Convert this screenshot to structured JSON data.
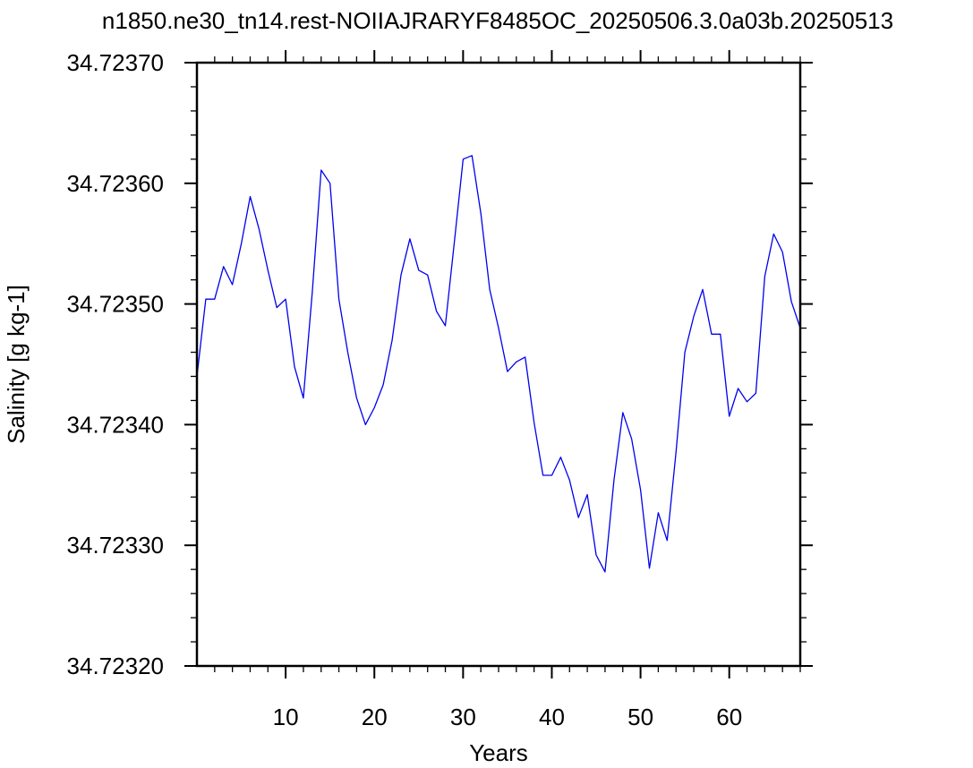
{
  "chart_data": {
    "type": "line",
    "title": "n1850.ne30_tn14.rest-NOIIAJRARYF8485OC_20250506.3.0a03b.20250513",
    "xlabel": "Years",
    "ylabel": "Salinity [g kg-1]",
    "xlim": [
      0,
      68
    ],
    "ylim": [
      34.7232,
      34.7237
    ],
    "x_ticks": [
      10,
      20,
      30,
      40,
      50,
      60
    ],
    "y_ticks": [
      34.7232,
      34.7233,
      34.7234,
      34.7235,
      34.7236,
      34.7237
    ],
    "y_tick_labels": [
      "34.72320",
      "34.72330",
      "34.72340",
      "34.72350",
      "34.72360",
      "34.72370"
    ],
    "grid": false,
    "line_color": "#0000ee",
    "series": [
      {
        "x": [
          0,
          1,
          2,
          3,
          4,
          5,
          6,
          7,
          8,
          9,
          10,
          11,
          12,
          13,
          14,
          15,
          16,
          17,
          18,
          19,
          20,
          21,
          22,
          23,
          24,
          25,
          26,
          27,
          28,
          29,
          30,
          31,
          32,
          33,
          34,
          35,
          36,
          37,
          38,
          39,
          40,
          41,
          42,
          43,
          44,
          45,
          46,
          47,
          48,
          49,
          50,
          51,
          52,
          53,
          54,
          55,
          56,
          57,
          58,
          59,
          60,
          61,
          62,
          63,
          64,
          65,
          66,
          67,
          68
        ],
        "values": [
          34.72344,
          34.723504,
          34.723504,
          34.723531,
          34.723516,
          34.72355,
          34.723589,
          34.723562,
          34.723528,
          34.723497,
          34.723504,
          34.723448,
          34.723422,
          34.72351,
          34.723611,
          34.7236,
          34.723504,
          34.72346,
          34.723422,
          34.7234,
          34.723414,
          34.723433,
          34.72347,
          34.723524,
          34.723554,
          34.723528,
          34.723524,
          34.723494,
          34.723482,
          34.72355,
          34.72362,
          34.723623,
          34.723575,
          34.723512,
          34.72348,
          34.723444,
          34.723452,
          34.723456,
          34.723402,
          34.723358,
          34.723358,
          34.723373,
          34.723354,
          34.723323,
          34.723342,
          34.723292,
          34.723278,
          34.723354,
          34.72341,
          34.723388,
          34.723346,
          34.723281,
          34.723327,
          34.723304,
          34.723377,
          34.72346,
          34.72349,
          34.723512,
          34.723475,
          34.723475,
          34.723407,
          34.72343,
          34.723419,
          34.723426,
          34.723523,
          34.723558,
          34.723543,
          34.723502,
          34.72348
        ]
      }
    ]
  }
}
